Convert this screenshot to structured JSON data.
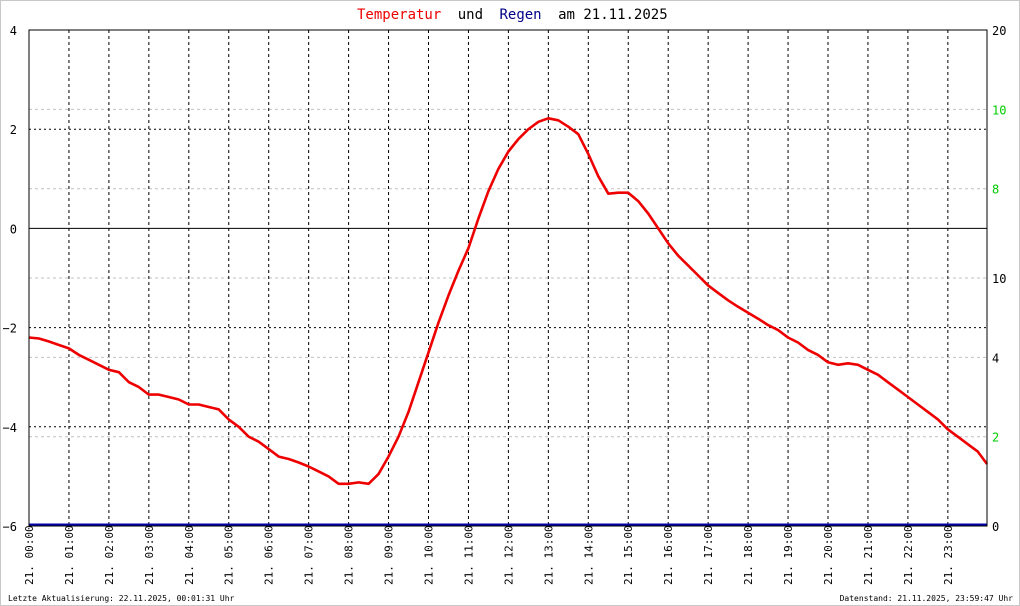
{
  "chart_data": {
    "type": "line",
    "title": {
      "part1": "Temperatur",
      "part2": "und",
      "part3": "Regen",
      "part4": "am 21.11.2025"
    },
    "colors": {
      "temperature": "#ee0000",
      "rain": "#0000aa",
      "title_temperature": "#ee0000",
      "title_regen": "#000088",
      "right_axis": "#00cc00",
      "grid": "#000000",
      "minor_grid": "#c0c0c0"
    },
    "left_axis": {
      "ylim": [
        -6,
        4
      ],
      "ticks": [
        "4",
        "2",
        "0",
        "−2",
        "−4",
        "−6"
      ],
      "tick_values": [
        4,
        2,
        0,
        -2,
        -4,
        -6
      ]
    },
    "right_axis": {
      "ticks": [
        "20",
        "10",
        "8",
        "10",
        "4",
        "2",
        "0"
      ],
      "tick_colors": [
        "#000000",
        "#00cc00",
        "#00cc00",
        "#000000",
        "#000000",
        "#00cc00",
        "#000000"
      ],
      "tick_values": [
        4,
        2.4,
        0.8,
        -1,
        -2.6,
        -4.2,
        -6
      ]
    },
    "x_ticks": [
      "21. 00:00",
      "21. 01:00",
      "21. 02:00",
      "21. 03:00",
      "21. 04:00",
      "21. 05:00",
      "21. 06:00",
      "21. 07:00",
      "21. 08:00",
      "21. 09:00",
      "21. 10:00",
      "21. 11:00",
      "21. 12:00",
      "21. 13:00",
      "21. 14:00",
      "21. 15:00",
      "21. 16:00",
      "21. 17:00",
      "21. 18:00",
      "21. 19:00",
      "21. 20:00",
      "21. 21:00",
      "21. 22:00",
      "21. 23:00"
    ],
    "xlim_hours": [
      0,
      23.98
    ],
    "grid": true,
    "series": [
      {
        "x_hours": [
          0,
          0.25,
          0.5,
          0.75,
          1,
          1.25,
          1.5,
          1.75,
          2,
          2.25,
          2.5,
          2.75,
          3,
          3.25,
          3.5,
          3.75,
          4,
          4.25,
          4.5,
          4.75,
          5,
          5.25,
          5.5,
          5.75,
          6,
          6.25,
          6.5,
          6.75,
          7,
          7.25,
          7.5,
          7.75,
          8,
          8.25,
          8.5,
          8.75,
          9,
          9.25,
          9.5,
          9.75,
          10,
          10.25,
          10.5,
          10.75,
          11,
          11.25,
          11.5,
          11.75,
          12,
          12.25,
          12.5,
          12.75,
          13,
          13.25,
          13.5,
          13.75,
          14,
          14.25,
          14.5,
          14.75,
          15,
          15.25,
          15.5,
          15.75,
          16,
          16.25,
          16.5,
          16.75,
          17,
          17.25,
          17.5,
          17.75,
          18,
          18.25,
          18.5,
          18.75,
          19,
          19.25,
          19.5,
          19.75,
          20,
          20.25,
          20.5,
          20.75,
          21,
          21.25,
          21.5,
          21.75,
          22,
          22.25,
          22.5,
          22.75,
          23,
          23.25,
          23.5,
          23.75,
          23.98
        ],
        "values": [
          -2.2,
          -2.22,
          -2.28,
          -2.35,
          -2.42,
          -2.55,
          -2.65,
          -2.75,
          -2.85,
          -2.9,
          -3.1,
          -3.2,
          -3.35,
          -3.35,
          -3.4,
          -3.45,
          -3.55,
          -3.55,
          -3.6,
          -3.65,
          -3.85,
          -4.0,
          -4.2,
          -4.3,
          -4.45,
          -4.6,
          -4.65,
          -4.72,
          -4.8,
          -4.9,
          -5.0,
          -5.15,
          -5.15,
          -5.12,
          -5.15,
          -4.95,
          -4.6,
          -4.2,
          -3.7,
          -3.1,
          -2.5,
          -1.9,
          -1.35,
          -0.85,
          -0.4,
          0.2,
          0.75,
          1.2,
          1.55,
          1.8,
          2.0,
          2.15,
          2.22,
          2.18,
          2.05,
          1.9,
          1.5,
          1.05,
          0.7,
          0.72,
          0.72,
          0.55,
          0.3,
          0.0,
          -0.3,
          -0.55,
          -0.75,
          -0.95,
          -1.15,
          -1.3,
          -1.45,
          -1.58,
          -1.7,
          -1.82,
          -1.95,
          -2.05,
          -2.2,
          -2.3,
          -2.45,
          -2.55,
          -2.7,
          -2.75,
          -2.72,
          -2.75,
          -2.85,
          -2.95,
          -3.1,
          -3.25,
          -3.4,
          -3.55,
          -3.7,
          -3.85,
          -4.05,
          -4.2,
          -4.35,
          -4.5,
          -4.75
        ]
      },
      {
        "x_hours": [
          0,
          23.98
        ],
        "values": [
          0,
          0
        ]
      }
    ]
  },
  "footer": {
    "left": "Letzte Aktualisierung: 22.11.2025, 00:01:31 Uhr",
    "right": "Datenstand: 21.11.2025, 23:59:47 Uhr"
  }
}
